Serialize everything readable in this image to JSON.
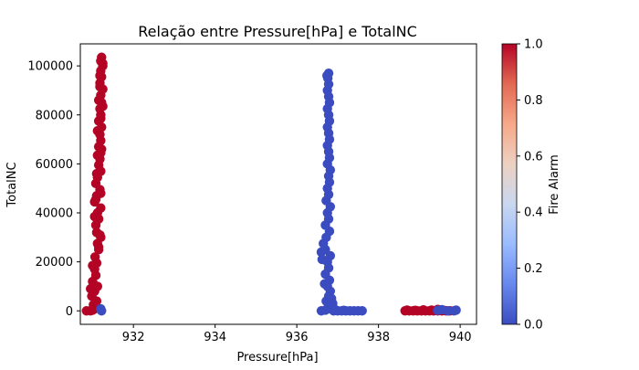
{
  "chart_data": {
    "type": "scatter",
    "title": "Relação entre Pressure[hPa] e TotalNC",
    "xlabel": "Pressure[hPa]",
    "ylabel": "TotalNC",
    "xlim": [
      930.7,
      940.4
    ],
    "ylim": [
      -5500,
      109000
    ],
    "xticks": [
      932,
      934,
      936,
      938,
      940
    ],
    "xtick_labels": [
      "932",
      "934",
      "936",
      "938",
      "940"
    ],
    "yticks": [
      0,
      20000,
      40000,
      60000,
      80000,
      100000
    ],
    "ytick_labels": [
      "0",
      "20000",
      "40000",
      "60000",
      "80000",
      "100000"
    ],
    "grid": false,
    "colormap": "coolwarm",
    "color_variable": "Fire Alarm",
    "colorbar": {
      "label": "Fire Alarm",
      "range": [
        0.0,
        1.0
      ],
      "ticks": [
        0.0,
        0.2,
        0.4,
        0.6,
        0.8,
        1.0
      ],
      "tick_labels": [
        "0.0",
        "0.2",
        "0.4",
        "0.6",
        "0.8",
        "1.0"
      ],
      "stops": [
        "#3b4cc0",
        "#6788ee",
        "#9abbff",
        "#c9d7f0",
        "#edd1c2",
        "#f7a889",
        "#e26952",
        "#b40426"
      ]
    },
    "series": [
      {
        "fire_alarm": 1,
        "color": "#b40426",
        "points": [
          [
            930.85,
            0
          ],
          [
            930.95,
            0
          ],
          [
            931.0,
            300
          ],
          [
            931.05,
            800
          ],
          [
            931.08,
            1200
          ],
          [
            931.02,
            2500
          ],
          [
            931.1,
            4000
          ],
          [
            930.98,
            6000
          ],
          [
            931.05,
            8000
          ],
          [
            931.12,
            10000
          ],
          [
            931.0,
            12000
          ],
          [
            931.08,
            14500
          ],
          [
            931.05,
            17000
          ],
          [
            931.1,
            19500
          ],
          [
            931.06,
            22000
          ],
          [
            931.15,
            25000
          ],
          [
            931.12,
            27500
          ],
          [
            931.2,
            30000
          ],
          [
            931.1,
            32000
          ],
          [
            931.08,
            35000
          ],
          [
            931.15,
            37500
          ],
          [
            931.12,
            40000
          ],
          [
            931.2,
            42000
          ],
          [
            931.05,
            44500
          ],
          [
            931.1,
            47000
          ],
          [
            931.18,
            49500
          ],
          [
            931.08,
            52000
          ],
          [
            931.12,
            54500
          ],
          [
            931.2,
            57000
          ],
          [
            931.15,
            59500
          ],
          [
            931.18,
            62000
          ],
          [
            931.2,
            64500
          ],
          [
            931.15,
            67000
          ],
          [
            931.2,
            69500
          ],
          [
            931.18,
            72000
          ],
          [
            931.22,
            75000
          ],
          [
            931.15,
            77500
          ],
          [
            931.2,
            80000
          ],
          [
            931.18,
            82500
          ],
          [
            931.22,
            85000
          ],
          [
            931.2,
            88000
          ],
          [
            931.25,
            90500
          ],
          [
            931.18,
            93000
          ],
          [
            931.22,
            95500
          ],
          [
            931.2,
            98000
          ],
          [
            931.25,
            100000
          ],
          [
            931.2,
            102000
          ],
          [
            931.22,
            103500
          ],
          [
            931.25,
            101000
          ],
          [
            931.18,
            96000
          ],
          [
            931.15,
            86000
          ],
          [
            931.25,
            83500
          ],
          [
            931.12,
            73500
          ],
          [
            931.22,
            66000
          ],
          [
            931.1,
            56000
          ],
          [
            931.2,
            48000
          ],
          [
            931.05,
            38500
          ],
          [
            931.18,
            31000
          ],
          [
            931.0,
            18500
          ],
          [
            930.95,
            9000
          ],
          [
            931.15,
            26000
          ],
          [
            931.08,
            45500
          ],
          [
            931.12,
            63500
          ],
          [
            931.2,
            78500
          ],
          [
            931.18,
            91500
          ]
        ]
      },
      {
        "fire_alarm": 0,
        "color": "#3b4cc0",
        "points": [
          [
            931.2,
            800
          ],
          [
            931.22,
            0
          ],
          [
            936.6,
            0
          ],
          [
            936.7,
            300
          ],
          [
            936.75,
            800
          ],
          [
            936.8,
            1500
          ],
          [
            936.85,
            2500
          ],
          [
            936.72,
            4000
          ],
          [
            936.78,
            6000
          ],
          [
            936.82,
            8000
          ],
          [
            936.75,
            10000
          ],
          [
            936.8,
            12500
          ],
          [
            936.7,
            15000
          ],
          [
            936.78,
            17500
          ],
          [
            936.75,
            20000
          ],
          [
            936.82,
            22500
          ],
          [
            936.7,
            25000
          ],
          [
            936.65,
            27500
          ],
          [
            936.72,
            30000
          ],
          [
            936.8,
            32500
          ],
          [
            936.7,
            35000
          ],
          [
            936.78,
            37500
          ],
          [
            936.75,
            40000
          ],
          [
            936.82,
            42500
          ],
          [
            936.72,
            45000
          ],
          [
            936.78,
            47500
          ],
          [
            936.75,
            50000
          ],
          [
            936.8,
            52500
          ],
          [
            936.78,
            55000
          ],
          [
            936.82,
            57500
          ],
          [
            936.75,
            60000
          ],
          [
            936.8,
            62500
          ],
          [
            936.78,
            65000
          ],
          [
            936.75,
            67500
          ],
          [
            936.8,
            70000
          ],
          [
            936.78,
            72500
          ],
          [
            936.75,
            75000
          ],
          [
            936.8,
            77500
          ],
          [
            936.78,
            80000
          ],
          [
            936.75,
            82500
          ],
          [
            936.8,
            85000
          ],
          [
            936.78,
            87500
          ],
          [
            936.75,
            90000
          ],
          [
            936.78,
            92500
          ],
          [
            936.76,
            95000
          ],
          [
            936.78,
            97000
          ],
          [
            936.74,
            96000
          ],
          [
            936.6,
            24000
          ],
          [
            936.62,
            21000
          ],
          [
            936.68,
            11000
          ],
          [
            936.85,
            5000
          ],
          [
            936.88,
            3000
          ],
          [
            936.9,
            0
          ],
          [
            937.0,
            0
          ],
          [
            937.1,
            0
          ],
          [
            937.2,
            0
          ],
          [
            937.3,
            0
          ],
          [
            937.4,
            0
          ],
          [
            937.5,
            0
          ],
          [
            937.6,
            0
          ],
          [
            936.95,
            400
          ],
          [
            937.15,
            200
          ]
        ]
      },
      {
        "fire_alarm": 1,
        "color": "#b40426",
        "points": [
          [
            938.65,
            0
          ],
          [
            938.75,
            0
          ],
          [
            938.85,
            0
          ],
          [
            938.95,
            0
          ],
          [
            939.05,
            0
          ],
          [
            939.15,
            0
          ],
          [
            939.25,
            0
          ],
          [
            939.35,
            0
          ],
          [
            939.45,
            0
          ],
          [
            939.55,
            0
          ],
          [
            939.65,
            0
          ],
          [
            939.75,
            0
          ],
          [
            938.7,
            300
          ],
          [
            938.9,
            200
          ],
          [
            939.1,
            400
          ],
          [
            939.3,
            300
          ],
          [
            939.45,
            600
          ],
          [
            939.6,
            200
          ]
        ]
      },
      {
        "fire_alarm": 0,
        "color": "#3b4cc0",
        "points": [
          [
            939.45,
            200
          ],
          [
            939.55,
            500
          ],
          [
            939.7,
            0
          ],
          [
            939.85,
            0
          ],
          [
            939.9,
            300
          ]
        ]
      }
    ]
  }
}
